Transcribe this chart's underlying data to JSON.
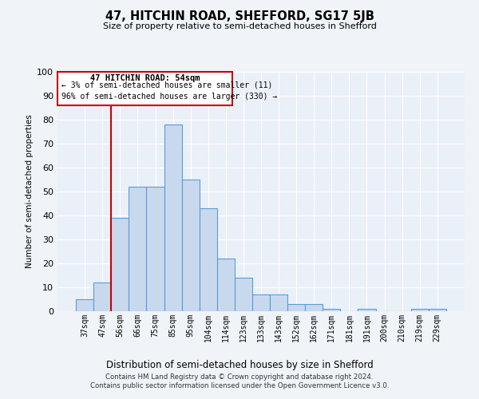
{
  "title": "47, HITCHIN ROAD, SHEFFORD, SG17 5JB",
  "subtitle": "Size of property relative to semi-detached houses in Shefford",
  "xlabel": "Distribution of semi-detached houses by size in Shefford",
  "ylabel": "Number of semi-detached properties",
  "categories": [
    "37sqm",
    "47sqm",
    "56sqm",
    "66sqm",
    "75sqm",
    "85sqm",
    "95sqm",
    "104sqm",
    "114sqm",
    "123sqm",
    "133sqm",
    "143sqm",
    "152sqm",
    "162sqm",
    "171sqm",
    "181sqm",
    "191sqm",
    "200sqm",
    "210sqm",
    "219sqm",
    "229sqm"
  ],
  "values": [
    5,
    12,
    39,
    52,
    52,
    78,
    55,
    43,
    22,
    14,
    7,
    7,
    3,
    3,
    1,
    0,
    1,
    0,
    0,
    1,
    1
  ],
  "bar_color": "#c9d9ed",
  "bar_edge_color": "#5b9bd5",
  "vline_x": 1.5,
  "vline_color": "#cc0000",
  "ylim": [
    0,
    100
  ],
  "yticks": [
    0,
    10,
    20,
    30,
    40,
    50,
    60,
    70,
    80,
    90,
    100
  ],
  "annotation_title": "47 HITCHIN ROAD: 54sqm",
  "annotation_line1": "← 3% of semi-detached houses are smaller (11)",
  "annotation_line2": "96% of semi-detached houses are larger (330) →",
  "annotation_box_color": "#cc0000",
  "footer_line1": "Contains HM Land Registry data © Crown copyright and database right 2024.",
  "footer_line2": "Contains public sector information licensed under the Open Government Licence v3.0.",
  "bg_color": "#eaf0f8",
  "grid_color": "#ffffff",
  "fig_bg": "#f0f4f8"
}
